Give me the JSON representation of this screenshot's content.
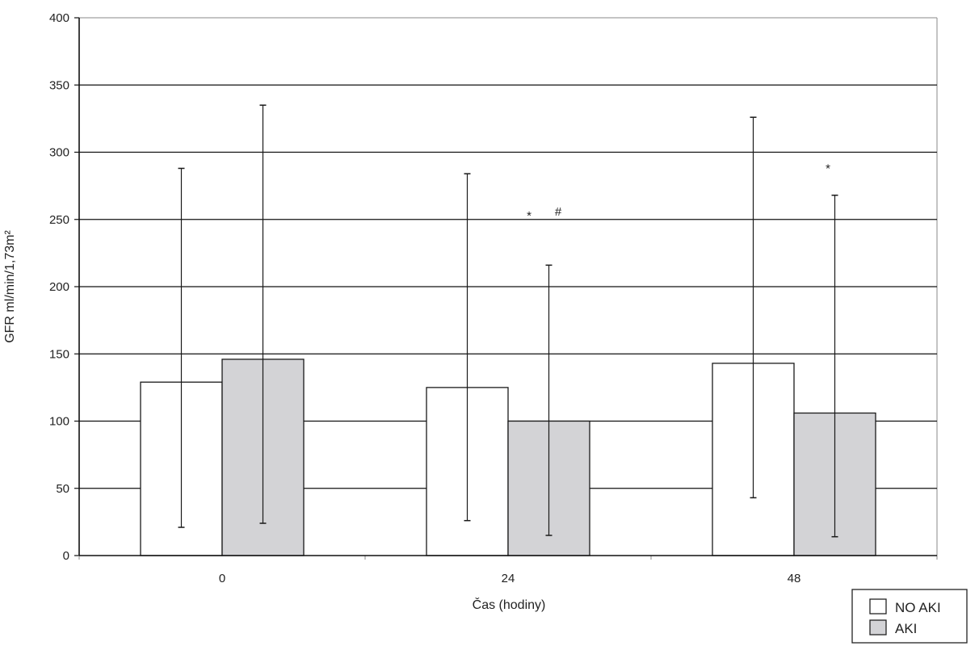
{
  "chart_data": {
    "type": "bar",
    "title": "",
    "xlabel": "Čas (hodiny)",
    "ylabel": "GFR ml/min/1,73m²",
    "ylim": [
      0,
      400
    ],
    "yticks": [
      0,
      50,
      100,
      150,
      200,
      250,
      300,
      350,
      400
    ],
    "grid": true,
    "categories": [
      "0",
      "24",
      "48"
    ],
    "series": [
      {
        "name": "NO AKI",
        "color": "#ffffff",
        "values": [
          129,
          125,
          143
        ],
        "error_low": [
          21,
          26,
          43
        ],
        "error_high": [
          288,
          284,
          326
        ]
      },
      {
        "name": "AKI",
        "color": "#d3d3d6",
        "values": [
          146,
          100,
          106
        ],
        "error_low": [
          24,
          15,
          14
        ],
        "error_high": [
          335,
          216,
          268
        ]
      }
    ],
    "annotations": [
      {
        "text": "*",
        "category": "24",
        "y": 253
      },
      {
        "text": "#",
        "category": "24",
        "y": 256
      },
      {
        "text": "*",
        "category": "48",
        "y": 288
      }
    ],
    "legend_position": "bottom-right"
  }
}
